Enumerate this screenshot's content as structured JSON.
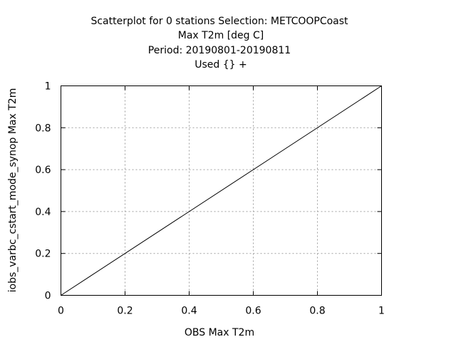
{
  "chart_data": {
    "type": "line",
    "title_lines": [
      "Scatterplot for    0 stations Selection: METCOOPCoast",
      "Max T2m [deg C]",
      "Period: 20190801-20190811",
      "Used {} +"
    ],
    "xlabel": "OBS Max T2m",
    "ylabel": "iobs_varbc_cstart_mode_synop Max T2m",
    "xlim": [
      0,
      1
    ],
    "ylim": [
      0,
      1
    ],
    "x_ticks": [
      "0",
      "0.2",
      "0.4",
      "0.6",
      "0.8",
      "1"
    ],
    "y_ticks": [
      "0",
      "0.2",
      "0.4",
      "0.6",
      "0.8",
      "1"
    ],
    "grid": true,
    "series": [
      {
        "x": [
          0,
          1
        ],
        "y": [
          0,
          1
        ]
      }
    ]
  }
}
